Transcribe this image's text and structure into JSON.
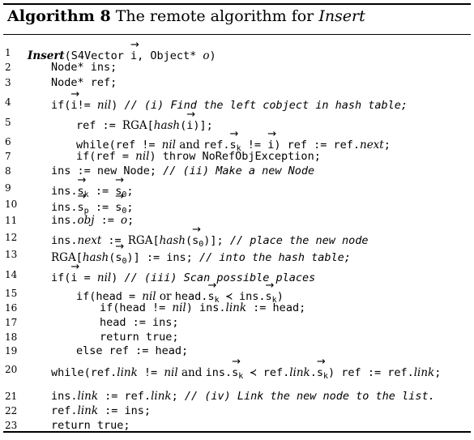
{
  "caption": {
    "label": "Algorithm 8",
    "text_plain": " The remote algorithm for ",
    "text_italic": "Insert"
  },
  "lines": [
    {
      "n": "1",
      "segs": [
        [
          "kwb",
          "Insert"
        ],
        [
          "",
          "(S4Vector "
        ],
        [
          "vec",
          "i"
        ],
        [
          "",
          ", Object* "
        ],
        [
          "kw",
          "o"
        ],
        [
          "",
          ")"
        ]
      ]
    },
    {
      "n": "2",
      "segs": [
        [
          "",
          "Node* ins;"
        ]
      ]
    },
    {
      "n": "3",
      "segs": [
        [
          "",
          "Node* ref;"
        ]
      ]
    },
    {
      "n": "4",
      "segs": [
        [
          "",
          "if("
        ],
        [
          "vec",
          "i"
        ],
        [
          "",
          "!= "
        ],
        [
          "kw",
          "nil"
        ],
        [
          "",
          ") "
        ],
        [
          "cm",
          "// (i) Find the left cobject in hash table;"
        ]
      ]
    },
    {
      "n": "5",
      "segs": [
        [
          "",
          "ref := "
        ],
        [
          "rm",
          "RGA"
        ],
        [
          "",
          "["
        ],
        [
          "kw",
          "hash"
        ],
        [
          "",
          "("
        ],
        [
          "vec",
          "i"
        ],
        [
          "",
          ")];"
        ]
      ]
    },
    {
      "n": "6",
      "segs": [
        [
          "",
          "while(ref != "
        ],
        [
          "kw",
          "nil"
        ],
        [
          "rm",
          " and "
        ],
        [
          "",
          "ref."
        ],
        [
          "vec",
          "s"
        ],
        [
          "sub",
          "k"
        ],
        [
          "",
          ""
        ],
        [
          "",
          " != "
        ],
        [
          "vec",
          "i"
        ],
        [
          "",
          ") ref := ref."
        ],
        [
          "kw",
          "next"
        ],
        [
          "",
          ";"
        ]
      ]
    },
    {
      "n": "7",
      "segs": [
        [
          "",
          "if(ref = "
        ],
        [
          "kw",
          "nil"
        ],
        [
          "",
          ") throw NoRefObjException;"
        ]
      ]
    },
    {
      "n": "8",
      "segs": [
        [
          "",
          "ins := new Node; "
        ],
        [
          "cm",
          "// (ii) Make a new Node"
        ]
      ]
    },
    {
      "n": "9",
      "segs": [
        [
          "",
          "ins."
        ],
        [
          "vec",
          "s"
        ],
        [
          "sub",
          "k"
        ],
        [
          "",
          " := "
        ],
        [
          "vec",
          "s"
        ],
        [
          "sub",
          "0"
        ],
        [
          "",
          ";"
        ]
      ]
    },
    {
      "n": "10",
      "segs": [
        [
          "",
          "ins."
        ],
        [
          "vec",
          "s"
        ],
        [
          "sub",
          "p"
        ],
        [
          "",
          " := "
        ],
        [
          "vec",
          "s"
        ],
        [
          "sub",
          "0"
        ],
        [
          "",
          ";"
        ]
      ]
    },
    {
      "n": "11",
      "segs": [
        [
          "",
          "ins."
        ],
        [
          "kw",
          "obj"
        ],
        [
          "",
          " := "
        ],
        [
          "kw",
          "o"
        ],
        [
          "",
          ";"
        ]
      ]
    },
    {
      "n": "12",
      "segs": [
        [
          "",
          "ins."
        ],
        [
          "kw",
          "next"
        ],
        [
          "",
          " := "
        ],
        [
          "rm",
          "RGA"
        ],
        [
          "",
          "["
        ],
        [
          "kw",
          "hash"
        ],
        [
          "",
          "("
        ],
        [
          "vec",
          "s"
        ],
        [
          "sub",
          "0"
        ],
        [
          "",
          ")]; "
        ],
        [
          "cm",
          "// place the new node"
        ]
      ]
    },
    {
      "n": "13",
      "segs": [
        [
          "rm",
          "RGA"
        ],
        [
          "",
          "["
        ],
        [
          "kw",
          "hash"
        ],
        [
          "",
          "("
        ],
        [
          "vec",
          "s"
        ],
        [
          "sub",
          "0"
        ],
        [
          "",
          ")] := ins;      "
        ],
        [
          "cm",
          "// into the hash table;"
        ]
      ]
    },
    {
      "n": "14",
      "segs": [
        [
          "",
          "if("
        ],
        [
          "vec",
          "i"
        ],
        [
          "",
          " = "
        ],
        [
          "kw",
          "nil"
        ],
        [
          "",
          ") "
        ],
        [
          "cm",
          "// (iii) Scan possible places"
        ]
      ]
    },
    {
      "n": "15",
      "segs": [
        [
          "",
          "if(head = "
        ],
        [
          "kw",
          "nil"
        ],
        [
          "rm",
          " or "
        ],
        [
          "",
          "head."
        ],
        [
          "vec",
          "s"
        ],
        [
          "sub",
          "k"
        ],
        [
          "",
          " ≺ ins."
        ],
        [
          "vec",
          "s"
        ],
        [
          "sub",
          "k"
        ],
        [
          "",
          ")"
        ]
      ]
    },
    {
      "n": "16",
      "segs": [
        [
          "",
          "if(head != "
        ],
        [
          "kw",
          "nil"
        ],
        [
          "",
          ") ins."
        ],
        [
          "kw",
          "link"
        ],
        [
          "",
          " := head;"
        ]
      ]
    },
    {
      "n": "17",
      "segs": [
        [
          "",
          "head := ins;"
        ]
      ]
    },
    {
      "n": "18",
      "segs": [
        [
          "",
          "return true;"
        ]
      ]
    },
    {
      "n": "19",
      "segs": [
        [
          "",
          "else ref := head;"
        ]
      ]
    },
    {
      "n": "20",
      "segs": [
        [
          "",
          "while(ref."
        ],
        [
          "kw",
          "link"
        ],
        [
          "",
          " != "
        ],
        [
          "kw",
          "nil"
        ],
        [
          "rm",
          " and "
        ],
        [
          "",
          "ins."
        ],
        [
          "vec",
          "s"
        ],
        [
          "sub",
          "k"
        ],
        [
          "",
          " ≺ ref."
        ],
        [
          "kw",
          "link"
        ],
        [
          "",
          "."
        ],
        [
          "vec",
          "s"
        ],
        [
          "sub",
          "k"
        ],
        [
          "",
          ") ref := ref."
        ],
        [
          "kw",
          "link"
        ],
        [
          "",
          ";"
        ]
      ]
    },
    {
      "n": "21",
      "segs": [
        [
          "",
          "ins."
        ],
        [
          "kw",
          "link"
        ],
        [
          "",
          " := ref."
        ],
        [
          "kw",
          "link"
        ],
        [
          "",
          "; "
        ],
        [
          "cm",
          "// (iv) Link the new node to the list."
        ]
      ]
    },
    {
      "n": "22",
      "segs": [
        [
          "",
          "ref."
        ],
        [
          "kw",
          "link"
        ],
        [
          "",
          " := ins;"
        ]
      ]
    },
    {
      "n": "23",
      "segs": [
        [
          "",
          "return true;"
        ]
      ]
    }
  ]
}
